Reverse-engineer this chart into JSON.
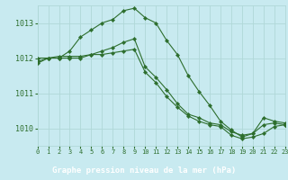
{
  "title": "Graphe pression niveau de la mer (hPa)",
  "background_color": "#c8eaf0",
  "grid_color": "#b0d8d8",
  "line_color": "#2d6e2d",
  "axis_bg": "#2d6e2d",
  "label_color_bottom": "#c8eaf0",
  "xlim": [
    0,
    23
  ],
  "ylim": [
    1009.5,
    1013.5
  ],
  "yticks": [
    1010,
    1011,
    1012,
    1013
  ],
  "xticks": [
    0,
    1,
    2,
    3,
    4,
    5,
    6,
    7,
    8,
    9,
    10,
    11,
    12,
    13,
    14,
    15,
    16,
    17,
    18,
    19,
    20,
    21,
    22,
    23
  ],
  "series": [
    [
      1011.85,
      1012.0,
      1012.0,
      1012.2,
      1012.6,
      1012.8,
      1013.0,
      1013.1,
      1013.35,
      1013.42,
      1013.15,
      1013.0,
      1012.5,
      1012.1,
      1011.5,
      1011.05,
      1010.65,
      1010.2,
      1009.95,
      1009.75,
      1009.85,
      1010.3,
      1010.2,
      1010.15
    ],
    [
      1011.9,
      1012.0,
      1012.0,
      1012.0,
      1012.0,
      1012.1,
      1012.2,
      1012.3,
      1012.45,
      1012.55,
      1011.75,
      1011.45,
      1011.1,
      1010.7,
      1010.4,
      1010.3,
      1010.15,
      1010.1,
      1009.9,
      1009.8,
      1009.85,
      1010.1,
      1010.15,
      1010.1
    ],
    [
      1012.0,
      1012.0,
      1012.05,
      1012.05,
      1012.05,
      1012.1,
      1012.1,
      1012.15,
      1012.2,
      1012.25,
      1011.6,
      1011.3,
      1010.9,
      1010.6,
      1010.35,
      1010.2,
      1010.1,
      1010.05,
      1009.8,
      1009.7,
      1009.75,
      1009.85,
      1010.05,
      1010.1
    ]
  ]
}
